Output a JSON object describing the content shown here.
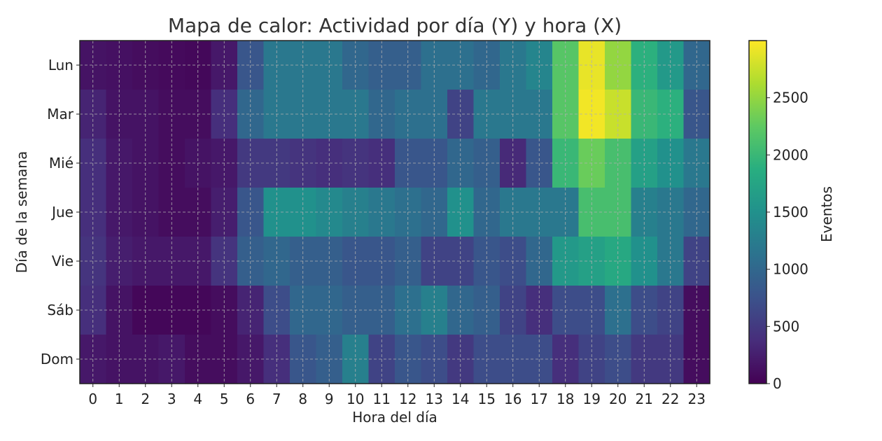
{
  "chart_data": {
    "type": "heatmap",
    "title": "Mapa de calor: Actividad por día (Y) y hora (X)",
    "xlabel": "Hora del día",
    "ylabel": "Día de la semana",
    "x": [
      "0",
      "1",
      "2",
      "3",
      "4",
      "5",
      "6",
      "7",
      "8",
      "9",
      "10",
      "11",
      "12",
      "13",
      "14",
      "15",
      "16",
      "17",
      "18",
      "19",
      "20",
      "21",
      "22",
      "23"
    ],
    "y": [
      "Lun",
      "Mar",
      "Mié",
      "Jue",
      "Vie",
      "Sáb",
      "Dom"
    ],
    "values": [
      [
        150,
        130,
        100,
        80,
        60,
        200,
        800,
        1200,
        1200,
        1200,
        1000,
        900,
        900,
        1100,
        1100,
        1000,
        1200,
        1350,
        2200,
        2900,
        2500,
        1900,
        1600,
        1000
      ],
      [
        300,
        150,
        150,
        100,
        100,
        400,
        1000,
        1200,
        1200,
        1200,
        1200,
        1000,
        1100,
        1100,
        600,
        1200,
        1200,
        1200,
        2200,
        2950,
        2750,
        2000,
        1900,
        800
      ],
      [
        400,
        200,
        150,
        100,
        150,
        200,
        500,
        500,
        450,
        400,
        450,
        400,
        800,
        800,
        1000,
        900,
        350,
        800,
        2000,
        2300,
        2100,
        1700,
        1500,
        1200
      ],
      [
        400,
        200,
        150,
        100,
        100,
        250,
        800,
        1500,
        1500,
        1400,
        1300,
        1200,
        1100,
        1000,
        1500,
        1000,
        1200,
        1200,
        1200,
        2100,
        2100,
        1300,
        1200,
        1000
      ],
      [
        450,
        250,
        200,
        200,
        200,
        450,
        900,
        1000,
        900,
        900,
        800,
        800,
        900,
        600,
        600,
        800,
        700,
        1000,
        1600,
        1700,
        1800,
        1500,
        1200,
        600
      ],
      [
        400,
        150,
        50,
        50,
        50,
        100,
        300,
        700,
        1000,
        1000,
        900,
        900,
        1100,
        1300,
        1000,
        900,
        600,
        400,
        700,
        700,
        1100,
        700,
        600,
        100
      ],
      [
        200,
        150,
        150,
        200,
        100,
        100,
        200,
        400,
        800,
        900,
        1300,
        600,
        800,
        700,
        500,
        700,
        700,
        700,
        400,
        600,
        700,
        500,
        500,
        100
      ]
    ],
    "zlim": [
      0,
      3000
    ],
    "colorbar": {
      "label": "Eventos",
      "ticks": [
        0,
        500,
        1000,
        1500,
        2000,
        2500
      ]
    },
    "grid": true,
    "colormap": "viridis"
  }
}
